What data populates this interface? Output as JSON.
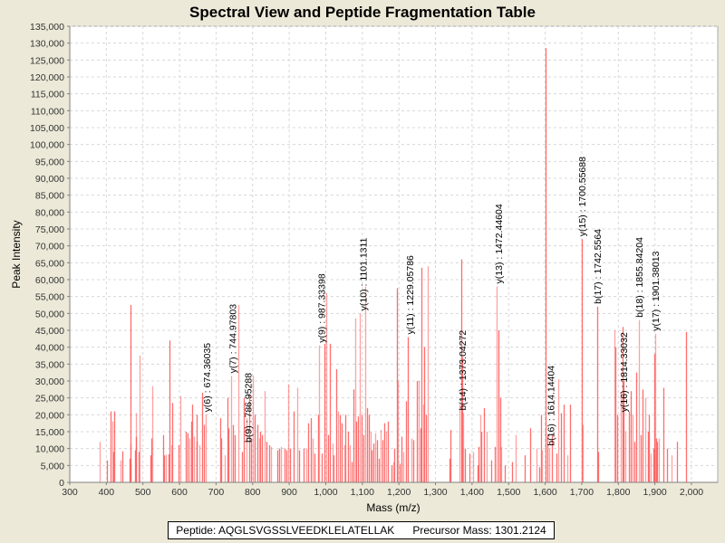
{
  "chart_data": {
    "type": "bar",
    "subtype": "spectrum",
    "title": "Spectral View and Peptide Fragmentation Table",
    "xlabel": "Mass (m/z)",
    "ylabel": "Peak Intensity",
    "xlim": [
      300,
      2070
    ],
    "ylim": [
      0,
      135000
    ],
    "grid": true,
    "x_ticks": [
      "300",
      "400",
      "500",
      "600",
      "700",
      "800",
      "900",
      "1,000",
      "1,100",
      "1,200",
      "1,300",
      "1,400",
      "1,500",
      "1,600",
      "1,700",
      "1,800",
      "1,900",
      "2,000"
    ],
    "x_tick_values": [
      300,
      400,
      500,
      600,
      700,
      800,
      900,
      1000,
      1100,
      1200,
      1300,
      1400,
      1500,
      1600,
      1700,
      1800,
      1900,
      2000
    ],
    "y_ticks": [
      "0",
      "5,000",
      "10,000",
      "15,000",
      "20,000",
      "25,000",
      "30,000",
      "35,000",
      "40,000",
      "45,000",
      "50,000",
      "55,000",
      "60,000",
      "65,000",
      "70,000",
      "75,000",
      "80,000",
      "85,000",
      "90,000",
      "95,000",
      "100,000",
      "105,000",
      "110,000",
      "115,000",
      "120,000",
      "125,000",
      "130,000",
      "135,000"
    ],
    "y_tick_values": [
      0,
      5000,
      10000,
      15000,
      20000,
      25000,
      30000,
      35000,
      40000,
      45000,
      50000,
      55000,
      60000,
      65000,
      70000,
      75000,
      80000,
      85000,
      90000,
      95000,
      100000,
      105000,
      110000,
      115000,
      120000,
      125000,
      130000,
      135000
    ],
    "series_color": "#ff5555",
    "peaks": [
      [
        382,
        12000
      ],
      [
        402,
        6500
      ],
      [
        412,
        21000
      ],
      [
        416,
        18000
      ],
      [
        418,
        9000
      ],
      [
        422,
        21000
      ],
      [
        440,
        6500
      ],
      [
        444,
        9200
      ],
      [
        463,
        7000
      ],
      [
        465,
        11500
      ],
      [
        467,
        52500
      ],
      [
        478,
        9500
      ],
      [
        480,
        20500
      ],
      [
        482,
        13500
      ],
      [
        488,
        9000
      ],
      [
        491,
        37500
      ],
      [
        520,
        8000
      ],
      [
        523,
        13000
      ],
      [
        525,
        28500
      ],
      [
        556,
        14000
      ],
      [
        558,
        8000
      ],
      [
        562,
        8200
      ],
      [
        570,
        8300
      ],
      [
        572,
        42000
      ],
      [
        577,
        11000
      ],
      [
        580,
        23500
      ],
      [
        598,
        11000
      ],
      [
        602,
        25500
      ],
      [
        618,
        15000
      ],
      [
        622,
        14500
      ],
      [
        628,
        13000
      ],
      [
        632,
        18000
      ],
      [
        635,
        23000
      ],
      [
        640,
        13500
      ],
      [
        646,
        12000
      ],
      [
        648,
        20000
      ],
      [
        655,
        11000
      ],
      [
        662,
        26500
      ],
      [
        668,
        17000
      ],
      [
        672,
        20000
      ],
      [
        712,
        19000
      ],
      [
        714,
        13000
      ],
      [
        724,
        8000
      ],
      [
        730,
        25000
      ],
      [
        734,
        16000
      ],
      [
        740,
        31500
      ],
      [
        746,
        17000
      ],
      [
        752,
        14000
      ],
      [
        762,
        52500
      ],
      [
        772,
        9000
      ],
      [
        776,
        25000
      ],
      [
        784,
        19000
      ],
      [
        790,
        26000
      ],
      [
        796,
        13000
      ],
      [
        800,
        31500
      ],
      [
        806,
        20000
      ],
      [
        812,
        17000
      ],
      [
        818,
        13000
      ],
      [
        820,
        15000
      ],
      [
        826,
        14000
      ],
      [
        832,
        27000
      ],
      [
        838,
        12000
      ],
      [
        844,
        11000
      ],
      [
        850,
        10500
      ],
      [
        868,
        9500
      ],
      [
        872,
        10000
      ],
      [
        878,
        10500
      ],
      [
        888,
        10000
      ],
      [
        892,
        9500
      ],
      [
        898,
        29000
      ],
      [
        902,
        10000
      ],
      [
        912,
        21000
      ],
      [
        922,
        28000
      ],
      [
        928,
        9500
      ],
      [
        940,
        10000
      ],
      [
        946,
        10000
      ],
      [
        952,
        17500
      ],
      [
        960,
        19000
      ],
      [
        965,
        13000
      ],
      [
        968,
        8500
      ],
      [
        978,
        20000
      ],
      [
        982,
        40500
      ],
      [
        990,
        8500
      ],
      [
        996,
        41000
      ],
      [
        1002,
        56000
      ],
      [
        1006,
        14000
      ],
      [
        1012,
        41000
      ],
      [
        1018,
        11500
      ],
      [
        1022,
        8000
      ],
      [
        1028,
        33500
      ],
      [
        1034,
        21000
      ],
      [
        1038,
        20000
      ],
      [
        1044,
        17500
      ],
      [
        1050,
        11000
      ],
      [
        1054,
        20000
      ],
      [
        1060,
        15000
      ],
      [
        1066,
        11000
      ],
      [
        1070,
        6000
      ],
      [
        1076,
        27500
      ],
      [
        1080,
        48500
      ],
      [
        1084,
        18000
      ],
      [
        1088,
        19500
      ],
      [
        1094,
        50000
      ],
      [
        1098,
        20000
      ],
      [
        1104,
        14000
      ],
      [
        1108,
        58000
      ],
      [
        1112,
        22000
      ],
      [
        1118,
        20000
      ],
      [
        1122,
        15000
      ],
      [
        1126,
        9500
      ],
      [
        1130,
        11500
      ],
      [
        1136,
        14500
      ],
      [
        1140,
        12500
      ],
      [
        1144,
        7000
      ],
      [
        1150,
        15500
      ],
      [
        1156,
        12500
      ],
      [
        1160,
        17500
      ],
      [
        1164,
        15000
      ],
      [
        1170,
        18000
      ],
      [
        1180,
        5000
      ],
      [
        1184,
        6000
      ],
      [
        1188,
        10000
      ],
      [
        1194,
        57500
      ],
      [
        1198,
        30000
      ],
      [
        1202,
        5500
      ],
      [
        1206,
        13500
      ],
      [
        1212,
        9000
      ],
      [
        1220,
        24000
      ],
      [
        1224,
        43000
      ],
      [
        1234,
        13000
      ],
      [
        1238,
        12500
      ],
      [
        1248,
        30000
      ],
      [
        1254,
        30000
      ],
      [
        1258,
        16000
      ],
      [
        1262,
        63500
      ],
      [
        1266,
        23000
      ],
      [
        1270,
        40000
      ],
      [
        1274,
        20000
      ],
      [
        1278,
        64000
      ],
      [
        1338,
        7000
      ],
      [
        1342,
        15500
      ],
      [
        1366,
        23000
      ],
      [
        1370,
        66000
      ],
      [
        1372,
        37000
      ],
      [
        1376,
        20500
      ],
      [
        1380,
        10000
      ],
      [
        1394,
        8500
      ],
      [
        1404,
        9000
      ],
      [
        1414,
        5000
      ],
      [
        1418,
        10500
      ],
      [
        1422,
        20000
      ],
      [
        1426,
        15000
      ],
      [
        1432,
        22000
      ],
      [
        1440,
        15000
      ],
      [
        1452,
        6500
      ],
      [
        1462,
        10500
      ],
      [
        1468,
        58000
      ],
      [
        1472,
        45000
      ],
      [
        1476,
        25000
      ],
      [
        1480,
        10500
      ],
      [
        1490,
        5000
      ],
      [
        1510,
        6000
      ],
      [
        1520,
        14000
      ],
      [
        1544,
        8000
      ],
      [
        1560,
        16000
      ],
      [
        1576,
        10000
      ],
      [
        1584,
        4500
      ],
      [
        1588,
        20000
      ],
      [
        1592,
        9500
      ],
      [
        1600,
        128500
      ],
      [
        1606,
        14000
      ],
      [
        1612,
        10000
      ],
      [
        1618,
        14000
      ],
      [
        1630,
        8500
      ],
      [
        1636,
        30500
      ],
      [
        1644,
        20500
      ],
      [
        1650,
        23000
      ],
      [
        1660,
        8000
      ],
      [
        1668,
        23000
      ],
      [
        1700,
        72000
      ],
      [
        1702,
        17000
      ],
      [
        1742,
        52000
      ],
      [
        1744,
        9000
      ],
      [
        1790,
        45000
      ],
      [
        1792,
        40000
      ],
      [
        1798,
        20000
      ],
      [
        1806,
        26500
      ],
      [
        1812,
        46000
      ],
      [
        1814,
        30000
      ],
      [
        1820,
        15000
      ],
      [
        1828,
        21000
      ],
      [
        1834,
        27000
      ],
      [
        1838,
        20000
      ],
      [
        1844,
        12000
      ],
      [
        1850,
        32500
      ],
      [
        1856,
        48000
      ],
      [
        1860,
        14000
      ],
      [
        1866,
        27500
      ],
      [
        1874,
        25000
      ],
      [
        1880,
        15000
      ],
      [
        1884,
        20000
      ],
      [
        1888,
        8500
      ],
      [
        1896,
        10000
      ],
      [
        1899,
        38000
      ],
      [
        1901,
        44000
      ],
      [
        1903,
        13000
      ],
      [
        1906,
        12000
      ],
      [
        1912,
        13000
      ],
      [
        1924,
        28000
      ],
      [
        1934,
        10000
      ],
      [
        1946,
        8000
      ],
      [
        1960,
        12000
      ],
      [
        1986,
        44500
      ]
    ],
    "annotations": [
      {
        "label": "y(6) : 674.36035",
        "mz": 674.36035,
        "intensity": 20000
      },
      {
        "label": "y(7) : 744.97803",
        "mz": 744.97803,
        "intensity": 31500
      },
      {
        "label": "b(9) : 786.95288",
        "mz": 786.95288,
        "intensity": 11000
      },
      {
        "label": "y(9) : 987.33398",
        "mz": 987.33398,
        "intensity": 40500
      },
      {
        "label": "y(10) : 1101.1311",
        "mz": 1101.1311,
        "intensity": 50000
      },
      {
        "label": "y(11) : 1229.05786",
        "mz": 1229.05786,
        "intensity": 43000
      },
      {
        "label": "b(14) : 1373.04272",
        "mz": 1373.04272,
        "intensity": 20500
      },
      {
        "label": "y(13) : 1472.44604",
        "mz": 1472.44604,
        "intensity": 58000
      },
      {
        "label": "b(16) : 1614.14404",
        "mz": 1614.14404,
        "intensity": 10000
      },
      {
        "label": "y(15) : 1700.55688",
        "mz": 1700.55688,
        "intensity": 72000
      },
      {
        "label": "b(17) : 1742.5564",
        "mz": 1742.5564,
        "intensity": 52000
      },
      {
        "label": "y(16) : 1814.33032",
        "mz": 1814.33032,
        "intensity": 20000
      },
      {
        "label": "b(18) : 1855.84204",
        "mz": 1855.84204,
        "intensity": 48000
      },
      {
        "label": "y(17) : 1901.38013",
        "mz": 1901.38013,
        "intensity": 44000
      }
    ]
  },
  "info_box": {
    "peptide_label": "Peptide: AQGLSVGSSLVEEDKLELATELLAK",
    "precursor_label": "Precursor Mass: 1301.2124"
  }
}
